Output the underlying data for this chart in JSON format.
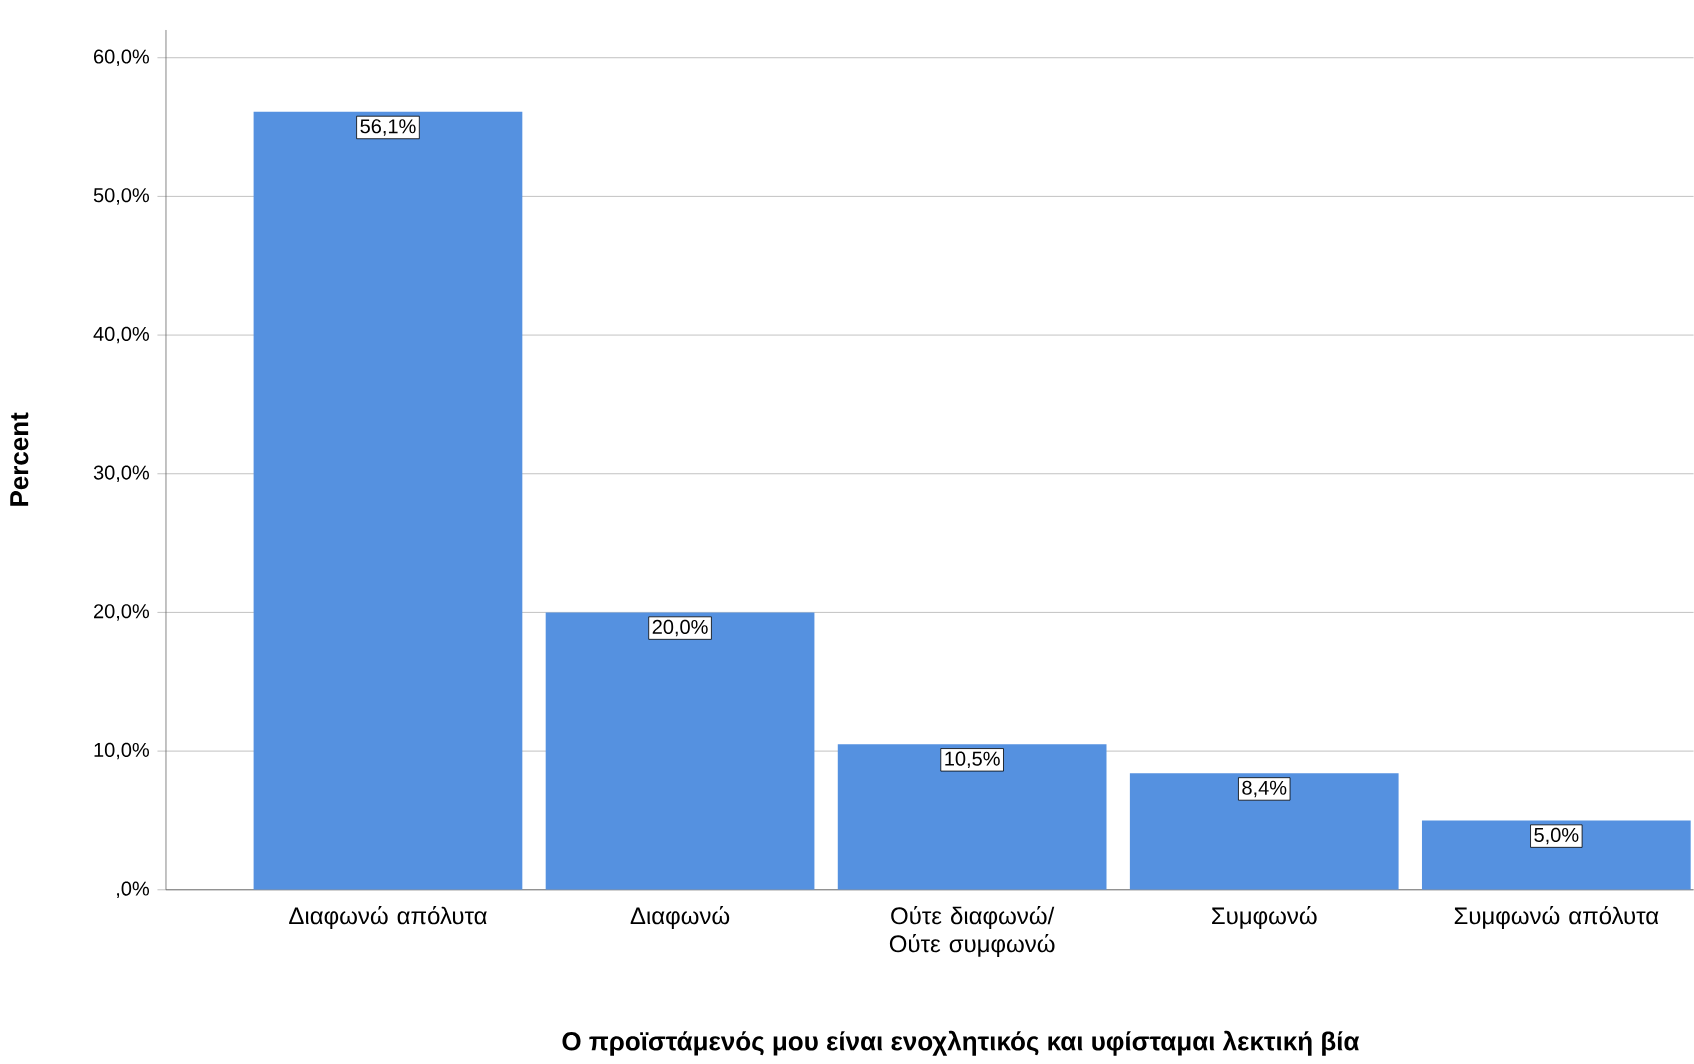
{
  "chart_data": {
    "type": "bar",
    "xlabel": "Ο προϊστάμενός μου είναι ενοχλητικός και υφίσταμαι λεκτική βία",
    "ylabel": "Percent",
    "categories": [
      "Διαφωνώ απόλυτα",
      "Διαφωνώ",
      "Ούτε διαφωνώ/ Ούτε συμφωνώ",
      "Συμφωνώ",
      "Συμφωνώ απόλυτα"
    ],
    "values": [
      56.1,
      20.0,
      10.5,
      8.4,
      5.0
    ],
    "value_labels": [
      "56,1%",
      "20,0%",
      "10,5%",
      "8,4%",
      "5,0%"
    ],
    "color": "#5591e0",
    "ylim": [
      0,
      62
    ],
    "yticks": [
      {
        "value": 0,
        "label": ",0%"
      },
      {
        "value": 10,
        "label": "10,0%"
      },
      {
        "value": 20,
        "label": "20,0%"
      },
      {
        "value": 30,
        "label": "30,0%"
      },
      {
        "value": 40,
        "label": "40,0%"
      },
      {
        "value": 50,
        "label": "50,0%"
      },
      {
        "value": 60,
        "label": "60,0%"
      }
    ],
    "grid": "y"
  }
}
